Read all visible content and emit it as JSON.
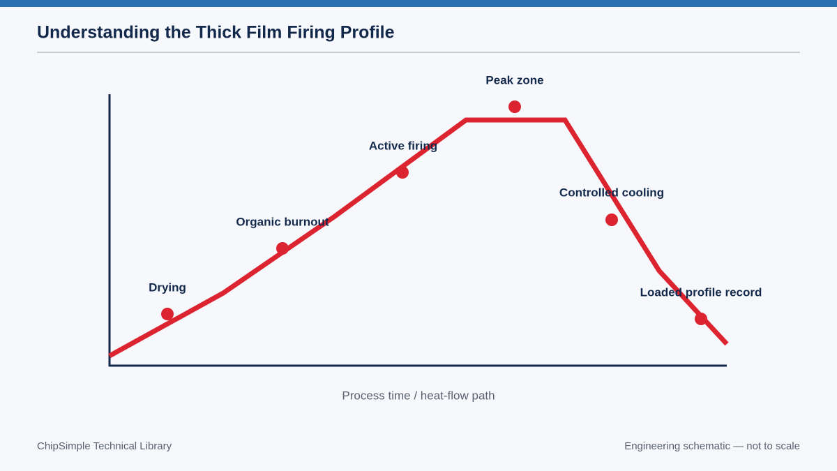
{
  "header": {
    "title": "Understanding the Thick Film Firing Profile"
  },
  "diagram": {
    "stages": [
      {
        "label": "Drying"
      },
      {
        "label": "Organic burnout"
      },
      {
        "label": "Active firing"
      },
      {
        "label": "Peak zone"
      },
      {
        "label": "Controlled cooling"
      },
      {
        "label": "Loaded profile record"
      }
    ],
    "x_axis_label": "Process time / heat-flow path"
  },
  "footer": {
    "left": "ChipSimple Technical Library",
    "right": "Engineering schematic — not to scale"
  }
}
